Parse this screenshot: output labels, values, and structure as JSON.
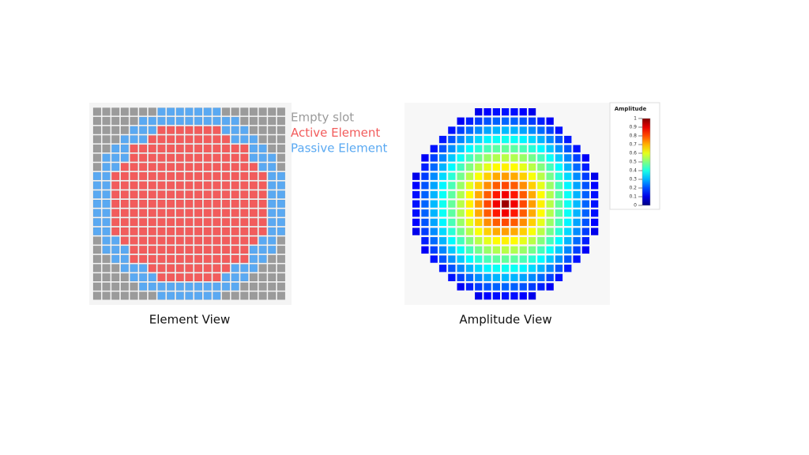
{
  "element_view": {
    "title": "Element View",
    "legend": [
      {
        "label": "Empty slot",
        "color": "#9b9b9b"
      },
      {
        "label": "Active Element",
        "color": "#f25c5c"
      },
      {
        "label": "Passive Element",
        "color": "#5aa9f2"
      }
    ]
  },
  "amplitude_view": {
    "title": "Amplitude View",
    "colorbar": {
      "title": "Amplitude",
      "ticks": [
        1,
        0.9,
        0.8,
        0.7,
        0.6,
        0.5,
        0.4,
        0.3,
        0.2,
        0.1,
        0
      ]
    }
  }
}
